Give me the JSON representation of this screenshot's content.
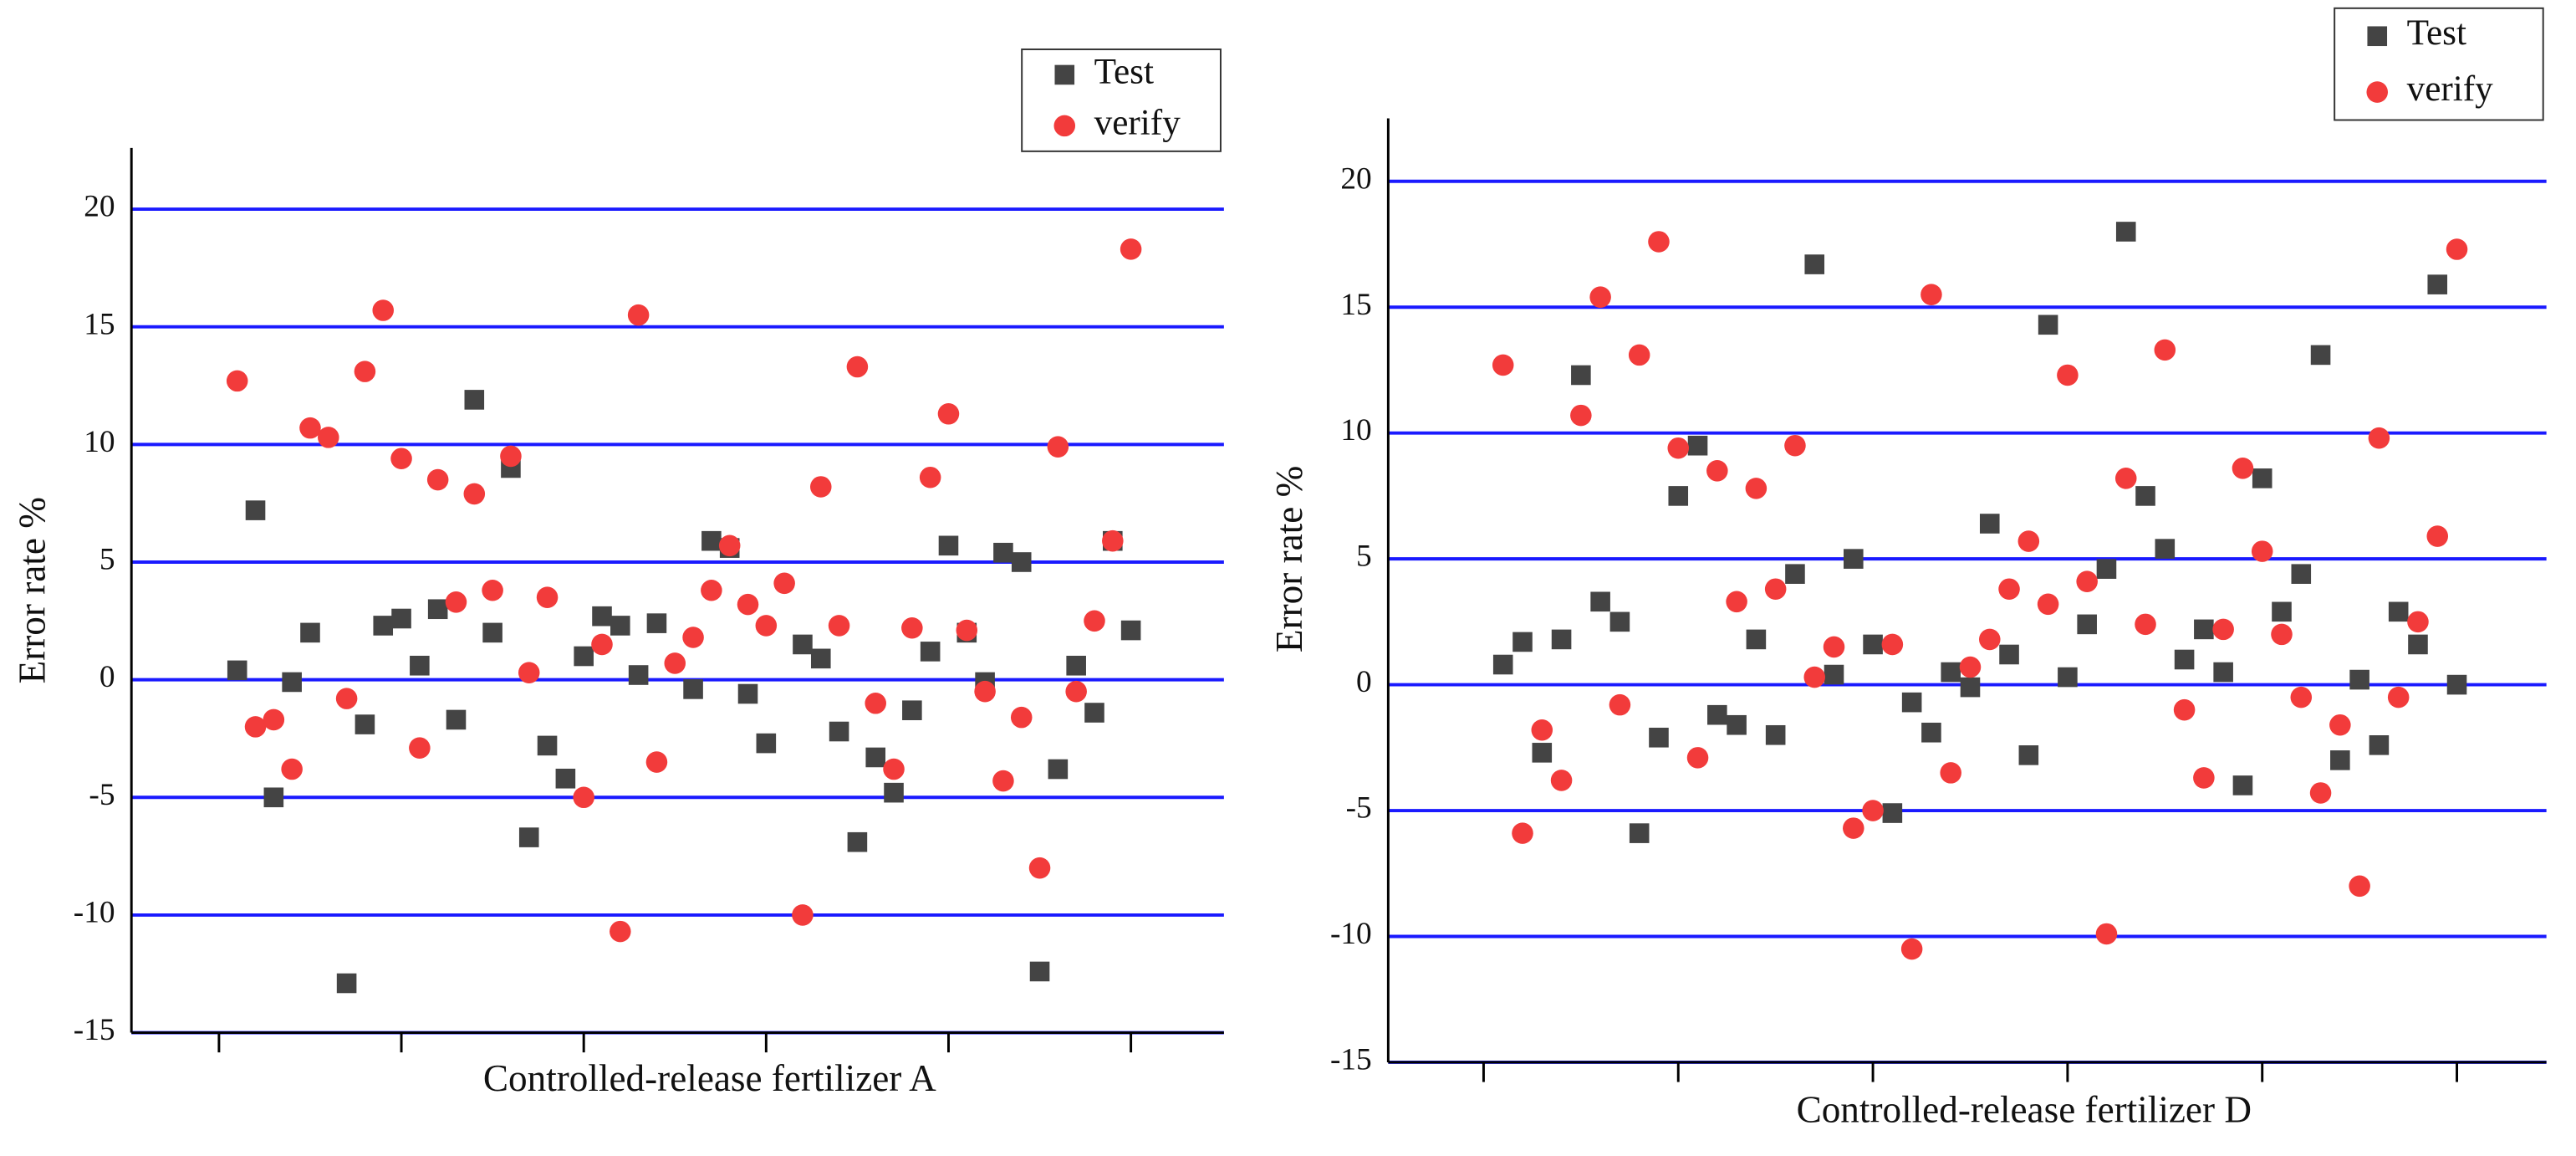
{
  "chart_data": [
    {
      "type": "scatter",
      "x_label": "Controlled-release fertilizer A",
      "y_label": "Error rate %",
      "xlim": [
        -4.8,
        55.1
      ],
      "xticks": [
        0,
        10,
        20,
        30,
        40,
        50
      ],
      "ylim": [
        -15,
        22.6
      ],
      "yticks": [
        -15,
        -10,
        -5,
        0,
        5,
        10,
        15,
        20
      ],
      "grid": true,
      "legend": "upper right",
      "series": [
        {
          "name": "Test",
          "color": "#444444",
          "marker": "square",
          "x": [
            1,
            2,
            3,
            4,
            5,
            7,
            8,
            9,
            10,
            11,
            12,
            13,
            14,
            15,
            16,
            17,
            18,
            19,
            20,
            21,
            22,
            23,
            24,
            26,
            27,
            28,
            29,
            30,
            32,
            33,
            34,
            35,
            36,
            37,
            38,
            39,
            40,
            41,
            42,
            43,
            44,
            45,
            46,
            47,
            48,
            49,
            50
          ],
          "values": [
            0.4,
            7.2,
            -5.0,
            -0.1,
            2.0,
            -12.9,
            -1.9,
            2.3,
            2.6,
            0.6,
            3.0,
            -1.7,
            11.9,
            2.0,
            9.0,
            -6.7,
            -2.8,
            -4.2,
            1.0,
            2.7,
            2.3,
            0.2,
            2.4,
            -0.4,
            5.9,
            5.6,
            -0.6,
            -2.7,
            1.5,
            0.9,
            -2.2,
            -6.9,
            -3.3,
            -4.8,
            -1.3,
            1.2,
            5.7,
            2.0,
            -0.1,
            5.4,
            5.0,
            -12.4,
            -3.8,
            0.6,
            -1.4,
            5.9,
            2.1
          ]
        },
        {
          "name": "verify",
          "color": "#f23b3b",
          "marker": "circle",
          "x": [
            1,
            2,
            3,
            4,
            5,
            6,
            7,
            8,
            9,
            10,
            11,
            12,
            13,
            14,
            15,
            16,
            17,
            18,
            20,
            21,
            22,
            23,
            24,
            25,
            26,
            27,
            28,
            29,
            30,
            31,
            32,
            33,
            34,
            35,
            36,
            37,
            38,
            39,
            40,
            41,
            42,
            43,
            44,
            45,
            46,
            47,
            48,
            49,
            50
          ],
          "values": [
            12.7,
            -2.0,
            -1.7,
            -3.8,
            10.7,
            10.3,
            -0.8,
            13.1,
            15.7,
            9.4,
            -2.9,
            8.5,
            3.3,
            7.9,
            3.8,
            9.5,
            0.3,
            3.5,
            -5.0,
            1.5,
            -10.7,
            15.5,
            -3.5,
            0.7,
            1.8,
            3.8,
            5.7,
            3.2,
            2.3,
            4.1,
            -10.0,
            8.2,
            2.3,
            13.3,
            -1.0,
            -3.8,
            2.2,
            8.6,
            11.3,
            2.1,
            -0.5,
            -4.3,
            -1.6,
            -8.0,
            9.9,
            -0.5,
            2.5,
            5.9,
            18.3
          ]
        }
      ]
    },
    {
      "type": "scatter",
      "x_label": "Controlled-release fertilizer D",
      "y_label": "Error rate %",
      "xlim": [
        -4.9,
        54.6
      ],
      "xticks": [
        0,
        10,
        20,
        30,
        40,
        50
      ],
      "ylim": [
        -15,
        22.5
      ],
      "yticks": [
        -15,
        -10,
        -5,
        0,
        5,
        10,
        15,
        20
      ],
      "grid": true,
      "legend": "upper right",
      "series": [
        {
          "name": "Test",
          "color": "#444444",
          "marker": "square",
          "x": [
            1,
            2,
            3,
            4,
            5,
            6,
            7,
            8,
            9,
            10,
            11,
            12,
            13,
            14,
            15,
            16,
            17,
            18,
            19,
            20,
            21,
            22,
            23,
            24,
            25,
            26,
            27,
            28,
            29,
            30,
            31,
            32,
            33,
            34,
            35,
            36,
            37,
            38,
            39,
            40,
            41,
            42,
            43,
            44,
            45,
            46,
            47,
            48,
            49,
            50
          ],
          "values": [
            0.8,
            1.7,
            -2.7,
            1.8,
            12.3,
            3.3,
            2.5,
            -5.9,
            -2.1,
            7.5,
            9.5,
            -1.2,
            -1.6,
            1.8,
            -2.0,
            4.4,
            16.7,
            0.4,
            5.0,
            1.6,
            -5.1,
            -0.7,
            -1.9,
            0.5,
            -0.1,
            6.4,
            1.2,
            -2.8,
            14.3,
            0.3,
            2.4,
            4.6,
            18.0,
            7.5,
            5.4,
            1.0,
            2.2,
            0.5,
            -4.0,
            8.2,
            2.9,
            4.4,
            13.1,
            -3.0,
            0.2,
            -2.4,
            2.9,
            1.6,
            15.9,
            0.0
          ]
        },
        {
          "name": "verify",
          "color": "#f23b3b",
          "marker": "circle",
          "x": [
            1,
            2,
            3,
            4,
            5,
            6,
            7,
            8,
            9,
            10,
            11,
            12,
            13,
            14,
            15,
            16,
            17,
            18,
            19,
            20,
            21,
            22,
            23,
            24,
            25,
            26,
            27,
            28,
            29,
            30,
            31,
            32,
            33,
            34,
            35,
            36,
            37,
            38,
            39,
            40,
            41,
            42,
            43,
            44,
            45,
            46,
            47,
            48,
            49,
            50
          ],
          "values": [
            12.7,
            -5.9,
            -1.8,
            -3.8,
            10.7,
            15.4,
            -0.8,
            13.1,
            17.6,
            9.4,
            -2.9,
            8.5,
            3.3,
            7.8,
            3.8,
            9.5,
            0.3,
            1.5,
            -5.7,
            -5.0,
            1.6,
            -10.5,
            15.5,
            -3.5,
            0.7,
            1.8,
            3.8,
            5.7,
            3.2,
            12.3,
            4.1,
            -9.9,
            8.2,
            2.4,
            13.3,
            -1.0,
            -3.7,
            2.2,
            8.6,
            5.3,
            2.0,
            -0.5,
            -4.3,
            -1.6,
            -8.0,
            9.8,
            -0.5,
            2.5,
            5.9,
            17.3
          ]
        }
      ]
    }
  ]
}
